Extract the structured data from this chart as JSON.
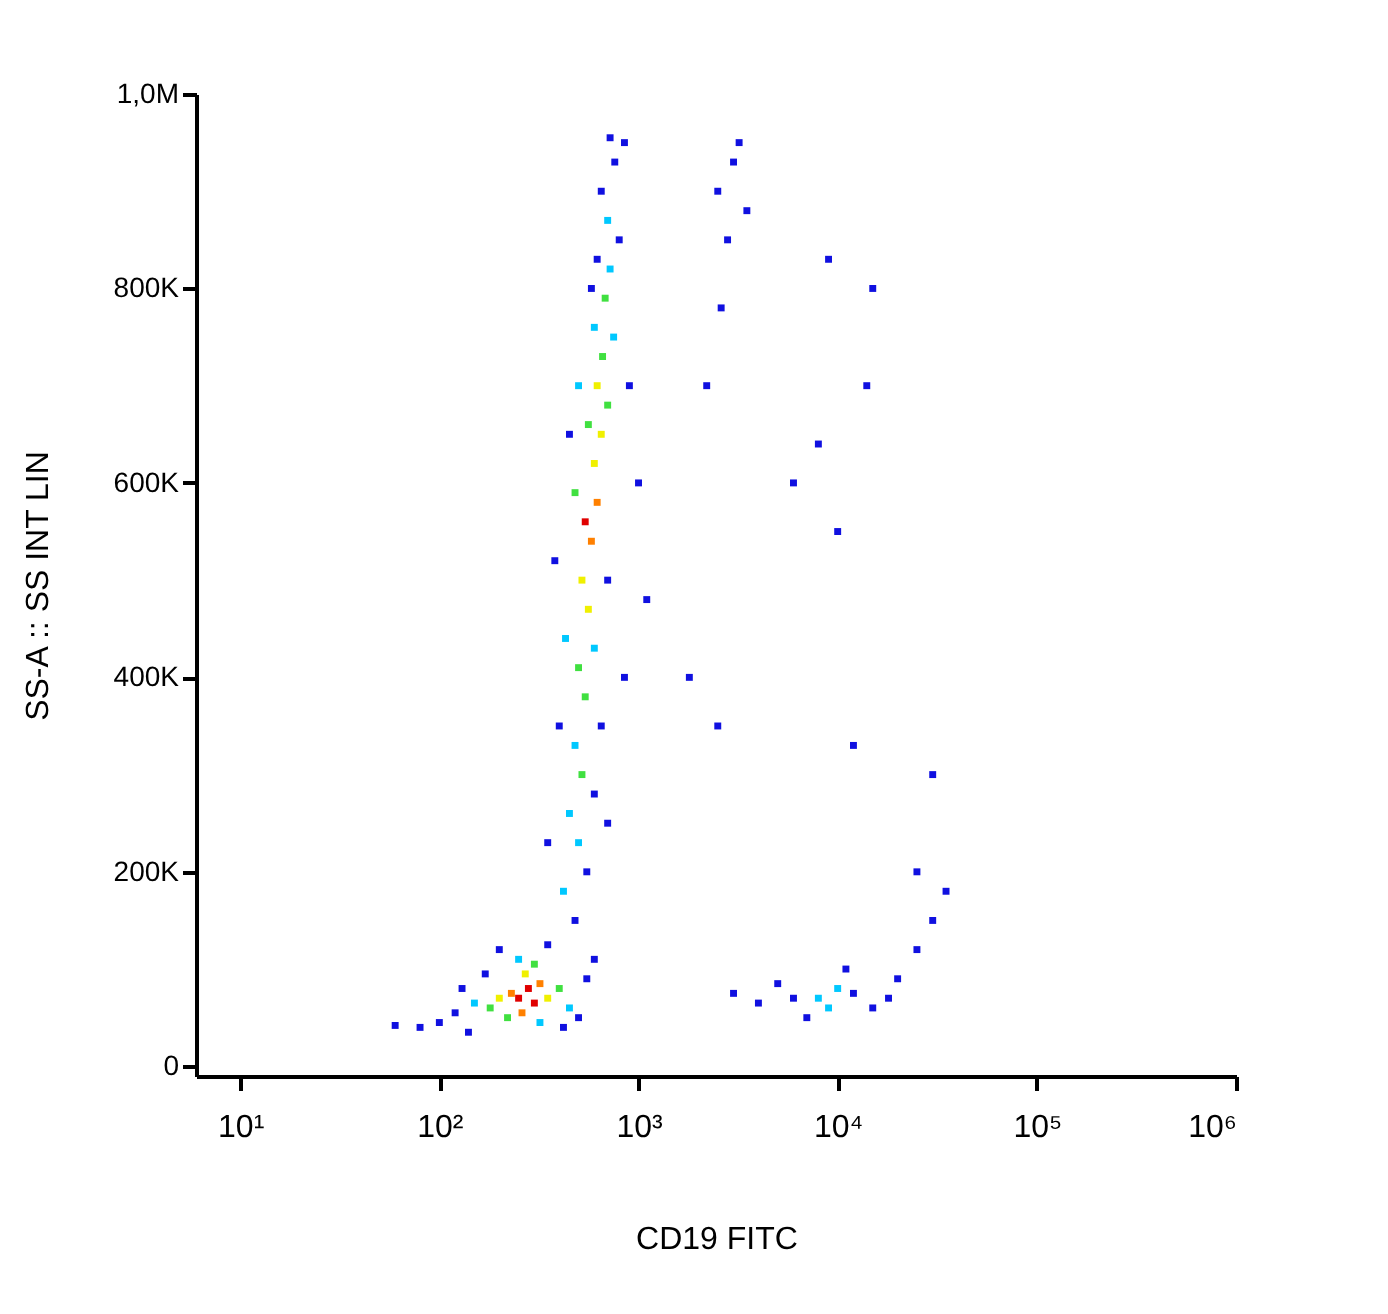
{
  "chart_data": {
    "type": "scatter",
    "xlabel": "CD19 FITC",
    "ylabel": "SS-A :: SS INT LIN",
    "log": "x",
    "marker": "square",
    "grid": false,
    "xlim": [
      6,
      1000000
    ],
    "xticks": [
      {
        "value": 10,
        "label": "10¹"
      },
      {
        "value": 100,
        "label": "10²"
      },
      {
        "value": 1000,
        "label": "10³"
      },
      {
        "value": 10000,
        "label": "10⁴"
      },
      {
        "value": 100000,
        "label": "10⁵"
      },
      {
        "value": 1000000,
        "label": "10⁶"
      }
    ],
    "ylim": [
      -10000,
      1000000
    ],
    "yticks": [
      {
        "value": 0,
        "label": "0"
      },
      {
        "value": 200000,
        "label": "200K"
      },
      {
        "value": 400000,
        "label": "400K"
      },
      {
        "value": 600000,
        "label": "600K"
      },
      {
        "value": 800000,
        "label": "800K"
      },
      {
        "value": 1000000,
        "label": "1,0M"
      }
    ],
    "x": [
      250,
      280,
      300,
      230,
      320,
      260,
      200,
      350,
      270,
      180,
      400,
      300,
      220,
      150,
      450,
      250,
      320,
      120,
      100,
      80,
      60,
      140,
      500,
      550,
      200,
      350,
      420,
      170,
      600,
      130,
      480,
      420,
      550,
      500,
      450,
      600,
      520,
      480,
      650,
      400,
      540,
      500,
      600,
      430,
      560,
      520,
      700,
      380,
      580,
      540,
      620,
      480,
      600,
      650,
      560,
      700,
      620,
      500,
      660,
      750,
      600,
      680,
      720,
      620,
      800,
      700,
      650,
      760,
      720,
      850,
      580,
      900,
      1000,
      450,
      850,
      1100,
      350,
      700,
      2500,
      3000,
      3500,
      2800,
      3200,
      2200,
      2600,
      1800,
      2500,
      6000,
      9000,
      15000,
      14000,
      8000,
      10000,
      12000,
      30000,
      25000,
      35000,
      8000,
      10000,
      9000,
      12000,
      6000,
      15000,
      5000,
      4000,
      20000,
      25000,
      11000,
      7000,
      3000,
      18000,
      30000
    ],
    "values": [
      70000,
      80000,
      65000,
      75000,
      85000,
      55000,
      70000,
      70000,
      95000,
      60000,
      80000,
      105000,
      50000,
      65000,
      60000,
      110000,
      45000,
      55000,
      45000,
      40000,
      42000,
      35000,
      50000,
      90000,
      120000,
      125000,
      40000,
      95000,
      110000,
      80000,
      150000,
      180000,
      200000,
      230000,
      260000,
      280000,
      300000,
      330000,
      350000,
      350000,
      380000,
      410000,
      430000,
      440000,
      470000,
      500000,
      500000,
      520000,
      540000,
      560000,
      580000,
      590000,
      620000,
      650000,
      660000,
      680000,
      700000,
      700000,
      730000,
      750000,
      760000,
      790000,
      820000,
      830000,
      850000,
      870000,
      900000,
      930000,
      955000,
      950000,
      800000,
      700000,
      600000,
      650000,
      400000,
      480000,
      230000,
      250000,
      900000,
      930000,
      880000,
      850000,
      950000,
      700000,
      780000,
      400000,
      350000,
      600000,
      830000,
      800000,
      700000,
      640000,
      550000,
      330000,
      300000,
      200000,
      180000,
      70000,
      80000,
      60000,
      75000,
      70000,
      60000,
      85000,
      65000,
      90000,
      120000,
      100000,
      50000,
      75000,
      70000,
      150000
    ],
    "colors": [
      "#e00000",
      "#e00000",
      "#e00000",
      "#ff8000",
      "#ff8000",
      "#ff8000",
      "#f0f000",
      "#f0f000",
      "#f0f000",
      "#40e040",
      "#40e040",
      "#40e040",
      "#40e040",
      "#00c8ff",
      "#00c8ff",
      "#00c8ff",
      "#00c8ff",
      "#1010e0",
      "#1010e0",
      "#1010e0",
      "#1010e0",
      "#1010e0",
      "#1010e0",
      "#1010e0",
      "#1010e0",
      "#1010e0",
      "#1010e0",
      "#1010e0",
      "#1010e0",
      "#1010e0",
      "#1010e0",
      "#00c8ff",
      "#1010e0",
      "#00c8ff",
      "#00c8ff",
      "#1010e0",
      "#40e040",
      "#00c8ff",
      "#1010e0",
      "#1010e0",
      "#40e040",
      "#40e040",
      "#00c8ff",
      "#00c8ff",
      "#f0f000",
      "#f0f000",
      "#1010e0",
      "#1010e0",
      "#ff8000",
      "#e00000",
      "#ff8000",
      "#40e040",
      "#f0f000",
      "#f0f000",
      "#40e040",
      "#40e040",
      "#f0f000",
      "#00c8ff",
      "#40e040",
      "#00c8ff",
      "#00c8ff",
      "#40e040",
      "#00c8ff",
      "#1010e0",
      "#1010e0",
      "#00c8ff",
      "#1010e0",
      "#1010e0",
      "#1010e0",
      "#1010e0",
      "#1010e0",
      "#1010e0",
      "#1010e0",
      "#1010e0",
      "#1010e0",
      "#1010e0",
      "#1010e0",
      "#1010e0",
      "#1010e0",
      "#1010e0",
      "#1010e0",
      "#1010e0",
      "#1010e0",
      "#1010e0",
      "#1010e0",
      "#1010e0",
      "#1010e0",
      "#1010e0",
      "#1010e0",
      "#1010e0",
      "#1010e0",
      "#1010e0",
      "#1010e0",
      "#1010e0",
      "#1010e0",
      "#1010e0",
      "#1010e0",
      "#00c8ff",
      "#00c8ff",
      "#00c8ff",
      "#1010e0",
      "#1010e0",
      "#1010e0",
      "#1010e0",
      "#1010e0",
      "#1010e0",
      "#1010e0",
      "#1010e0",
      "#1010e0",
      "#1010e0",
      "#1010e0",
      "#1010e0"
    ]
  }
}
